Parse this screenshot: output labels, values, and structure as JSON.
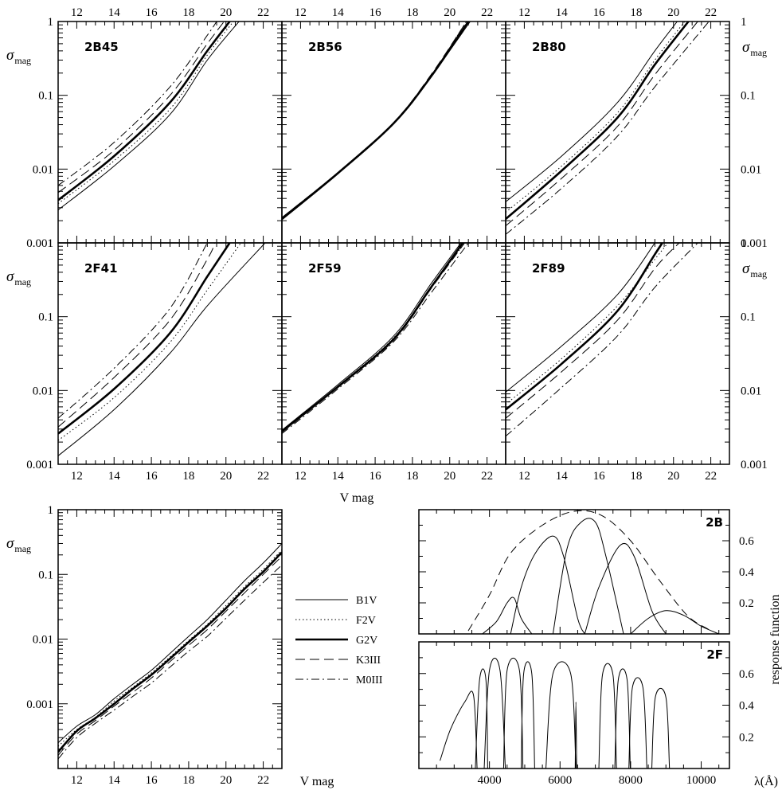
{
  "figure": {
    "x_axis_label": "V mag",
    "y_axis_label_main": "σ",
    "y_axis_label_sub": "mag",
    "response_axis_label": "response function",
    "wavelength_axis_label": "λ(Å)"
  },
  "legend": [
    {
      "label": "B1V",
      "style": "solid-thin"
    },
    {
      "label": "F2V",
      "style": "dotted"
    },
    {
      "label": "G2V",
      "style": "solid-thick"
    },
    {
      "label": "K3III",
      "style": "dashed"
    },
    {
      "label": "M0III",
      "style": "dashdot"
    }
  ],
  "chart_data": [
    {
      "type": "line",
      "panel": "2B45",
      "log_y": true,
      "xlim": [
        11,
        23
      ],
      "ylim": [
        0.001,
        1
      ],
      "x_ticks": [
        12,
        14,
        16,
        18,
        20,
        22
      ],
      "y_ticks": [
        "0.001",
        "0.01",
        "0.1",
        "1"
      ],
      "series": [
        {
          "name": "B1V",
          "x": [
            11,
            14,
            17,
            19,
            20.7
          ],
          "y": [
            0.0028,
            0.011,
            0.055,
            0.3,
            1
          ]
        },
        {
          "name": "F2V",
          "x": [
            11,
            14,
            17,
            19,
            20.4
          ],
          "y": [
            0.0034,
            0.013,
            0.065,
            0.35,
            1
          ]
        },
        {
          "name": "G2V",
          "x": [
            11,
            14,
            17,
            19,
            20.2
          ],
          "y": [
            0.0038,
            0.015,
            0.08,
            0.4,
            1
          ]
        },
        {
          "name": "K3III",
          "x": [
            11,
            14,
            17,
            19,
            19.9
          ],
          "y": [
            0.0048,
            0.018,
            0.1,
            0.5,
            1
          ]
        },
        {
          "name": "M0III",
          "x": [
            11,
            14,
            17,
            19,
            19.5
          ],
          "y": [
            0.006,
            0.023,
            0.13,
            0.65,
            1
          ]
        }
      ]
    },
    {
      "type": "line",
      "panel": "2B56",
      "log_y": true,
      "xlim": [
        11,
        23
      ],
      "ylim": [
        0.001,
        1
      ],
      "x_ticks": [
        12,
        14,
        16,
        18,
        20,
        22
      ],
      "series": [
        {
          "name": "B1V",
          "x": [
            11,
            14,
            17,
            19,
            21.1
          ],
          "y": [
            0.0022,
            0.009,
            0.042,
            0.18,
            1
          ]
        },
        {
          "name": "F2V",
          "x": [
            11,
            14,
            17,
            19,
            21.0
          ],
          "y": [
            0.0021,
            0.0088,
            0.041,
            0.18,
            1
          ]
        },
        {
          "name": "G2V",
          "x": [
            11,
            14,
            17,
            19,
            21.0
          ],
          "y": [
            0.0021,
            0.0088,
            0.042,
            0.18,
            1
          ]
        },
        {
          "name": "K3III",
          "x": [
            11,
            14,
            17,
            19,
            20.9
          ],
          "y": [
            0.0022,
            0.009,
            0.043,
            0.19,
            1
          ]
        },
        {
          "name": "M0III",
          "x": [
            11,
            14,
            17,
            19,
            20.9
          ],
          "y": [
            0.0021,
            0.0089,
            0.042,
            0.185,
            1
          ]
        }
      ]
    },
    {
      "type": "line",
      "panel": "2B80",
      "log_y": true,
      "xlim": [
        11,
        23
      ],
      "ylim": [
        0.001,
        1
      ],
      "x_ticks": [
        12,
        14,
        16,
        18,
        20,
        22
      ],
      "y_ticks": [
        "0.001",
        "0.01",
        "0.1",
        "1"
      ],
      "series": [
        {
          "name": "B1V",
          "x": [
            11,
            14,
            17,
            19,
            20.2
          ],
          "y": [
            0.0036,
            0.015,
            0.08,
            0.4,
            1
          ]
        },
        {
          "name": "F2V",
          "x": [
            11,
            14,
            17,
            19,
            20.6
          ],
          "y": [
            0.0026,
            0.011,
            0.058,
            0.3,
            1
          ]
        },
        {
          "name": "G2V",
          "x": [
            11,
            14,
            17,
            19,
            20.8
          ],
          "y": [
            0.0021,
            0.0095,
            0.05,
            0.26,
            1
          ]
        },
        {
          "name": "K3III",
          "x": [
            11,
            14,
            17,
            19,
            21.3
          ],
          "y": [
            0.0017,
            0.0075,
            0.038,
            0.19,
            1
          ]
        },
        {
          "name": "M0III",
          "x": [
            11,
            14,
            17,
            19,
            21.9
          ],
          "y": [
            0.0013,
            0.0055,
            0.028,
            0.13,
            1
          ]
        }
      ]
    },
    {
      "type": "line",
      "panel": "2F41",
      "log_y": true,
      "xlim": [
        11,
        23
      ],
      "ylim": [
        0.001,
        1
      ],
      "x_ticks": [
        12,
        14,
        16,
        18,
        20,
        22
      ],
      "y_ticks": [
        "0.001",
        "0.01",
        "0.1",
        "1"
      ],
      "series": [
        {
          "name": "B1V",
          "x": [
            11,
            14,
            17,
            19,
            22.1
          ],
          "y": [
            0.0013,
            0.0055,
            0.032,
            0.14,
            1
          ]
        },
        {
          "name": "F2V",
          "x": [
            11,
            14,
            17,
            19,
            20.8
          ],
          "y": [
            0.0021,
            0.008,
            0.045,
            0.23,
            1
          ]
        },
        {
          "name": "G2V",
          "x": [
            11,
            14,
            17,
            19,
            20.2
          ],
          "y": [
            0.0026,
            0.0105,
            0.06,
            0.35,
            1
          ]
        },
        {
          "name": "K3III",
          "x": [
            11,
            14,
            17,
            19,
            19.4
          ],
          "y": [
            0.0032,
            0.015,
            0.09,
            0.6,
            1
          ]
        },
        {
          "name": "M0III",
          "x": [
            11,
            14,
            17,
            19,
            19.0
          ],
          "y": [
            0.0042,
            0.02,
            0.13,
            1,
            1
          ]
        }
      ]
    },
    {
      "type": "line",
      "panel": "2F59",
      "log_y": true,
      "xlim": [
        11,
        23
      ],
      "ylim": [
        0.001,
        1
      ],
      "x_ticks": [
        12,
        14,
        16,
        18,
        20,
        22
      ],
      "series": [
        {
          "name": "B1V",
          "x": [
            11,
            14,
            17,
            19,
            20.6
          ],
          "y": [
            0.0029,
            0.012,
            0.055,
            0.28,
            1
          ]
        },
        {
          "name": "F2V",
          "x": [
            11,
            14,
            17,
            19,
            20.8
          ],
          "y": [
            0.0028,
            0.0115,
            0.052,
            0.25,
            1
          ]
        },
        {
          "name": "G2V",
          "x": [
            11,
            14,
            17,
            19,
            20.7
          ],
          "y": [
            0.0028,
            0.0112,
            0.05,
            0.25,
            1
          ]
        },
        {
          "name": "K3III",
          "x": [
            11,
            14,
            17,
            19,
            20.8
          ],
          "y": [
            0.0027,
            0.011,
            0.048,
            0.24,
            1
          ]
        },
        {
          "name": "M0III",
          "x": [
            11,
            14,
            17,
            19,
            21.0
          ],
          "y": [
            0.0026,
            0.0105,
            0.046,
            0.21,
            1
          ]
        }
      ]
    },
    {
      "type": "line",
      "panel": "2F89",
      "log_y": true,
      "xlim": [
        11,
        23
      ],
      "ylim": [
        0.001,
        1
      ],
      "x_ticks": [
        12,
        14,
        16,
        18,
        20,
        22
      ],
      "y_ticks": [
        "0.001",
        "0.01",
        "0.1",
        "1"
      ],
      "series": [
        {
          "name": "B1V",
          "x": [
            11,
            14,
            17,
            19,
            18.9
          ],
          "y": [
            0.0095,
            0.04,
            0.2,
            1,
            1
          ]
        },
        {
          "name": "F2V",
          "x": [
            11,
            14,
            17,
            19,
            19.7
          ],
          "y": [
            0.0065,
            0.027,
            0.14,
            0.6,
            1
          ]
        },
        {
          "name": "G2V",
          "x": [
            11,
            14,
            17,
            19,
            19.4
          ],
          "y": [
            0.0055,
            0.023,
            0.12,
            0.7,
            1
          ]
        },
        {
          "name": "K3III",
          "x": [
            11,
            14,
            17,
            19,
            20.3
          ],
          "y": [
            0.0042,
            0.018,
            0.09,
            0.45,
            1
          ]
        },
        {
          "name": "M0III",
          "x": [
            11,
            14,
            17,
            19,
            21.3
          ],
          "y": [
            0.0024,
            0.011,
            0.055,
            0.25,
            1
          ]
        }
      ]
    },
    {
      "type": "line",
      "panel": "combined",
      "log_y": true,
      "xlim": [
        11,
        23
      ],
      "ylim": [
        0.0001,
        1
      ],
      "x_ticks": [
        12,
        14,
        16,
        18,
        20,
        22
      ],
      "y_ticks": [
        "0.001",
        "0.01",
        "0.1",
        "1"
      ],
      "series": [
        {
          "name": "B1V",
          "x": [
            11,
            12,
            13,
            14,
            15,
            16,
            17,
            18,
            19,
            20,
            21,
            22,
            23
          ],
          "y": [
            0.00025,
            0.00045,
            0.00068,
            0.0012,
            0.002,
            0.0033,
            0.006,
            0.011,
            0.02,
            0.04,
            0.08,
            0.15,
            0.3
          ]
        },
        {
          "name": "F2V",
          "x": [
            11,
            12,
            13,
            14,
            15,
            16,
            17,
            18,
            19,
            20,
            21,
            22,
            23
          ],
          "y": [
            0.00022,
            0.0004,
            0.00062,
            0.0011,
            0.0018,
            0.003,
            0.0053,
            0.0095,
            0.017,
            0.033,
            0.065,
            0.12,
            0.24
          ]
        },
        {
          "name": "G2V",
          "x": [
            11,
            12,
            13,
            14,
            15,
            16,
            17,
            18,
            19,
            20,
            21,
            22,
            23
          ],
          "y": [
            0.00018,
            0.00038,
            0.0006,
            0.001,
            0.0017,
            0.0028,
            0.005,
            0.009,
            0.016,
            0.03,
            0.06,
            0.11,
            0.22
          ]
        },
        {
          "name": "K3III",
          "x": [
            11,
            12,
            13,
            14,
            15,
            16,
            17,
            18,
            19,
            20,
            21,
            22,
            23
          ],
          "y": [
            0.00016,
            0.00034,
            0.00055,
            0.00092,
            0.0015,
            0.0025,
            0.0045,
            0.008,
            0.014,
            0.027,
            0.052,
            0.1,
            0.19
          ]
        },
        {
          "name": "M0III",
          "x": [
            11,
            12,
            13,
            14,
            15,
            16,
            17,
            18,
            19,
            20,
            21,
            22,
            23
          ],
          "y": [
            0.00014,
            0.0003,
            0.0005,
            0.0008,
            0.0013,
            0.0021,
            0.0037,
            0.0065,
            0.011,
            0.021,
            0.04,
            0.075,
            0.14
          ]
        }
      ]
    },
    {
      "type": "line",
      "panel": "2B",
      "xlim": [
        2000,
        10800
      ],
      "ylim": [
        0,
        0.8
      ],
      "y_ticks": [
        "0.2",
        "0.4",
        "0.6"
      ],
      "series": [
        {
          "x": [
            3800,
            4200,
            4500,
            4700,
            4900,
            5200
          ],
          "y": [
            0.0,
            0.08,
            0.2,
            0.23,
            0.1,
            0.0
          ]
        },
        {
          "x": [
            4600,
            4900,
            5300,
            5800,
            6100,
            6500,
            6700
          ],
          "y": [
            0.0,
            0.3,
            0.52,
            0.63,
            0.5,
            0.1,
            0.0
          ]
        },
        {
          "x": [
            5800,
            6200,
            6600,
            7000,
            7300,
            7800
          ],
          "y": [
            0.0,
            0.55,
            0.72,
            0.72,
            0.5,
            0.0
          ]
        },
        {
          "x": [
            6700,
            7100,
            7700,
            8100,
            8600,
            9000
          ],
          "y": [
            0.0,
            0.3,
            0.57,
            0.5,
            0.15,
            0.0
          ]
        },
        {
          "x": [
            8000,
            8500,
            9000,
            9500,
            10000,
            10500
          ],
          "y": [
            0.0,
            0.1,
            0.15,
            0.12,
            0.05,
            0.0
          ]
        },
        {
          "x": [
            3400,
            4000,
            4600,
            5500,
            6400,
            7200,
            8000,
            8800,
            9600,
            10200
          ],
          "y": [
            0.02,
            0.25,
            0.52,
            0.7,
            0.79,
            0.76,
            0.6,
            0.35,
            0.12,
            0.03
          ]
        }
      ]
    },
    {
      "type": "line",
      "panel": "2F",
      "xlim": [
        2000,
        10800
      ],
      "ylim": [
        0,
        0.8
      ],
      "x_ticks": [
        4000,
        6000,
        8000,
        10000
      ],
      "y_ticks": [
        "0.2",
        "0.4",
        "0.6"
      ],
      "series": [
        {
          "x": [
            2600,
            2900,
            3300,
            3550,
            3650
          ],
          "y": [
            0.05,
            0.25,
            0.42,
            0.46,
            0.0
          ]
        },
        {
          "x": [
            3600,
            3720,
            3900,
            3950
          ],
          "y": [
            0.0,
            0.56,
            0.56,
            0.0
          ]
        },
        {
          "x": [
            3850,
            4000,
            4300,
            4450
          ],
          "y": [
            0.0,
            0.62,
            0.62,
            0.0
          ]
        },
        {
          "x": [
            4400,
            4500,
            4850,
            4950
          ],
          "y": [
            0.0,
            0.62,
            0.62,
            0.0
          ]
        },
        {
          "x": [
            4900,
            4970,
            5200,
            5280
          ],
          "y": [
            0.0,
            0.6,
            0.6,
            0.0
          ]
        },
        {
          "x": [
            5600,
            5800,
            6300,
            6450
          ],
          "y": [
            0.0,
            0.6,
            0.6,
            0.0
          ]
        },
        {
          "x": [
            6430,
            6450,
            6470
          ],
          "y": [
            0.0,
            0.42,
            0.0
          ]
        },
        {
          "x": [
            7100,
            7200,
            7500,
            7600
          ],
          "y": [
            0.0,
            0.59,
            0.59,
            0.0
          ]
        },
        {
          "x": [
            7550,
            7650,
            7900,
            7990
          ],
          "y": [
            0.0,
            0.56,
            0.56,
            0.0
          ]
        },
        {
          "x": [
            7950,
            8050,
            8350,
            8460
          ],
          "y": [
            0.0,
            0.51,
            0.51,
            0.0
          ]
        },
        {
          "x": [
            8600,
            8700,
            9000,
            9100
          ],
          "y": [
            0.0,
            0.45,
            0.45,
            0.0
          ]
        }
      ]
    }
  ]
}
